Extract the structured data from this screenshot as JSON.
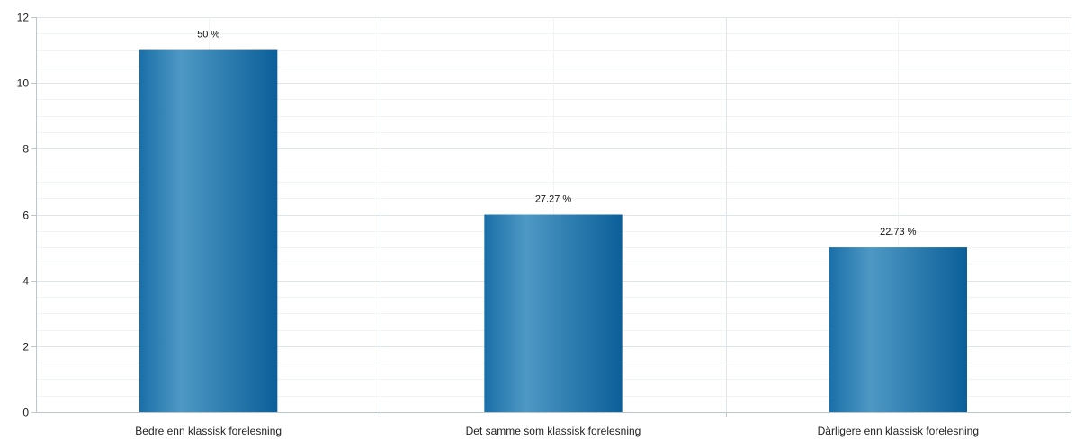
{
  "chart_data": {
    "type": "bar",
    "categories": [
      "Bedre enn klassisk forelesning",
      "Det samme som klassisk forelesning",
      "Dårligere enn klassisk forelesning"
    ],
    "values": [
      11,
      6,
      5
    ],
    "data_labels": [
      "50 %",
      "27.27 %",
      "22.73 %"
    ],
    "ylim": [
      0,
      12
    ],
    "yticks": [
      "0",
      "2",
      "4",
      "6",
      "8",
      "10",
      "12"
    ],
    "title": "",
    "xlabel": "",
    "ylabel": "",
    "grid": true,
    "legend": "none",
    "colors": {
      "bar_dark": "#0b5f99",
      "bar_light": "#4e98c4",
      "bar_mid": "#1a6fa8",
      "grid_major": "#dfe6ea",
      "grid_minor": "#f1f4f6",
      "axis": "#b9c7d0"
    }
  }
}
